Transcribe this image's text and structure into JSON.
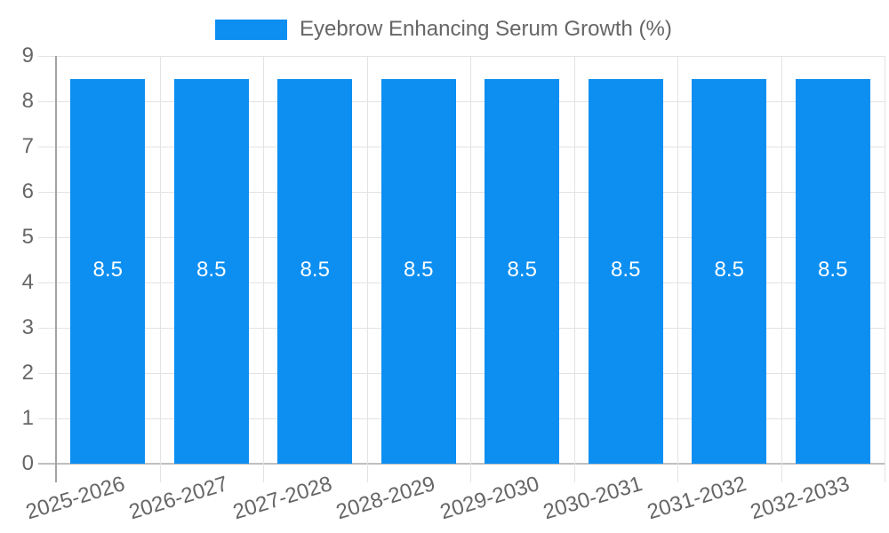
{
  "legend": {
    "label": "Eyebrow Enhancing Serum Growth (%)"
  },
  "chart_data": {
    "type": "bar",
    "title": "Eyebrow Enhancing Serum Growth (%)",
    "categories": [
      "2025-2026",
      "2026-2027",
      "2027-2028",
      "2028-2029",
      "2029-2030",
      "2030-2031",
      "2031-2032",
      "2032-2033"
    ],
    "values": [
      8.5,
      8.5,
      8.5,
      8.5,
      8.5,
      8.5,
      8.5,
      8.5
    ],
    "bar_value_labels": [
      "8.5",
      "8.5",
      "8.5",
      "8.5",
      "8.5",
      "8.5",
      "8.5",
      "8.5"
    ],
    "xlabel": "",
    "ylabel": "",
    "ylim": [
      0,
      9
    ],
    "yticks": [
      0,
      1,
      2,
      3,
      4,
      5,
      6,
      7,
      8,
      9
    ],
    "grid": true,
    "legend_position": "top",
    "colors": {
      "bar": "#0d8ff2",
      "bar_value_text": "#ffffff",
      "axis_text": "#666666",
      "gridline": "#e3e3e3",
      "zero_line": "#bfbfbf",
      "axis_line": "#a3a3a3",
      "background": "#ffffff"
    }
  }
}
